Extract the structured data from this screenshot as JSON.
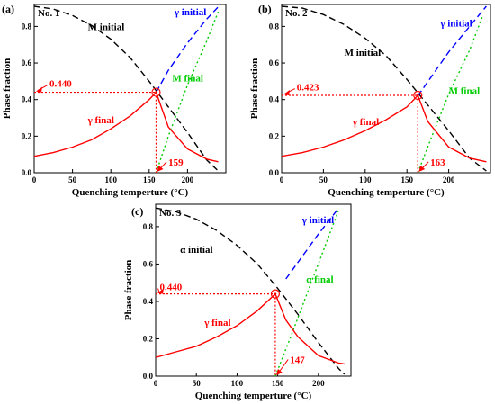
{
  "colors": {
    "gamma_final": "#ff0000",
    "gamma_initial": "#0000ff",
    "m_final": "#00cc00",
    "m_initial": "#000000",
    "annotation": "#ff0000"
  },
  "chart_data": [
    {
      "type": "line",
      "panel_letter": "(a)",
      "label": "No. 1",
      "xlabel": "Quenching temperture (°C)",
      "ylabel": "Phase fraction",
      "xlim": [
        0,
        250
      ],
      "ylim": [
        0,
        0.92
      ],
      "xticks": [
        0,
        50,
        100,
        150,
        200
      ],
      "yticks": [
        0.0,
        0.2,
        0.4,
        0.6,
        0.8
      ],
      "grid": false,
      "series": [
        {
          "name": "M initial",
          "style": "dashed",
          "color": "#000000",
          "x": [
            0,
            25,
            50,
            75,
            100,
            125,
            150,
            175,
            200,
            225,
            240
          ],
          "y": [
            0.91,
            0.895,
            0.86,
            0.805,
            0.73,
            0.63,
            0.5,
            0.36,
            0.22,
            0.07,
            0.01
          ]
        },
        {
          "name": "γ initial",
          "style": "dashed",
          "color": "#0000ff",
          "x": [
            159,
            175,
            200,
            225,
            243
          ],
          "y": [
            0.44,
            0.56,
            0.71,
            0.84,
            0.92
          ]
        },
        {
          "name": "M final",
          "style": "dotted",
          "color": "#00cc00",
          "x": [
            159,
            175,
            200,
            225,
            240
          ],
          "y": [
            0.0,
            0.2,
            0.48,
            0.72,
            0.88
          ]
        },
        {
          "name": "γ final",
          "style": "solid",
          "color": "#ff0000",
          "x": [
            0,
            25,
            50,
            75,
            100,
            125,
            150,
            159,
            175,
            200,
            225,
            240
          ],
          "y": [
            0.09,
            0.11,
            0.14,
            0.18,
            0.24,
            0.31,
            0.4,
            0.44,
            0.25,
            0.13,
            0.075,
            0.06
          ]
        }
      ],
      "annotations": {
        "value": "0.440",
        "temp": "159",
        "x": 159,
        "y": 0.44
      }
    },
    {
      "type": "line",
      "panel_letter": "(b)",
      "label": "No. 2",
      "xlabel": "Quenching temperture (°C)",
      "ylabel": "Phase fraction",
      "xlim": [
        0,
        250
      ],
      "ylim": [
        0,
        0.92
      ],
      "xticks": [
        0,
        50,
        100,
        150,
        200
      ],
      "yticks": [
        0.0,
        0.2,
        0.4,
        0.6,
        0.8
      ],
      "grid": false,
      "series": [
        {
          "name": "M initial",
          "style": "dashed",
          "color": "#000000",
          "x": [
            0,
            25,
            50,
            75,
            100,
            125,
            150,
            175,
            200,
            225,
            245
          ],
          "y": [
            0.91,
            0.9,
            0.865,
            0.81,
            0.735,
            0.64,
            0.51,
            0.37,
            0.23,
            0.08,
            0.01
          ]
        },
        {
          "name": "γ initial",
          "style": "dashed",
          "color": "#0000ff",
          "x": [
            163,
            180,
            200,
            225,
            245
          ],
          "y": [
            0.42,
            0.53,
            0.66,
            0.8,
            0.91
          ]
        },
        {
          "name": "M final",
          "style": "dotted",
          "color": "#00cc00",
          "x": [
            163,
            180,
            200,
            225,
            240
          ],
          "y": [
            0.0,
            0.2,
            0.43,
            0.67,
            0.85
          ]
        },
        {
          "name": "γ final",
          "style": "solid",
          "color": "#ff0000",
          "x": [
            0,
            25,
            50,
            75,
            100,
            125,
            150,
            163,
            175,
            200,
            225,
            245
          ],
          "y": [
            0.09,
            0.11,
            0.14,
            0.18,
            0.23,
            0.29,
            0.36,
            0.423,
            0.28,
            0.14,
            0.08,
            0.06
          ]
        }
      ],
      "annotations": {
        "value": "0.423",
        "temp": "163",
        "x": 163,
        "y": 0.423
      }
    },
    {
      "type": "line",
      "panel_letter": "(c)",
      "label": "No. 3",
      "xlabel": "Quenching temperture (°C)",
      "ylabel": "Phase fraction",
      "xlim": [
        0,
        240
      ],
      "ylim": [
        0,
        0.92
      ],
      "xticks": [
        0,
        50,
        100,
        150,
        200
      ],
      "yticks": [
        0.0,
        0.2,
        0.4,
        0.6,
        0.8
      ],
      "grid": false,
      "series": [
        {
          "name": "α initial",
          "style": "dashed",
          "color": "#000000",
          "x": [
            0,
            25,
            50,
            75,
            100,
            125,
            150,
            175,
            200,
            225,
            232
          ],
          "y": [
            0.9,
            0.88,
            0.84,
            0.78,
            0.7,
            0.6,
            0.47,
            0.33,
            0.18,
            0.04,
            0.01
          ]
        },
        {
          "name": "γ initial",
          "style": "dashed",
          "color": "#0000ff",
          "x": [
            160,
            175,
            200,
            225
          ],
          "y": [
            0.52,
            0.61,
            0.76,
            0.9
          ]
        },
        {
          "name": "α final",
          "style": "dotted",
          "color": "#00cc00",
          "x": [
            147,
            165,
            185,
            205,
            225
          ],
          "y": [
            0.0,
            0.2,
            0.43,
            0.66,
            0.89
          ]
        },
        {
          "name": "γ final",
          "style": "solid",
          "color": "#ff0000",
          "x": [
            0,
            25,
            50,
            75,
            100,
            125,
            147,
            160,
            175,
            200,
            225,
            232
          ],
          "y": [
            0.1,
            0.13,
            0.16,
            0.21,
            0.27,
            0.35,
            0.44,
            0.3,
            0.21,
            0.11,
            0.07,
            0.065
          ]
        }
      ],
      "annotations": {
        "value": "0.440",
        "temp": "147",
        "x": 147,
        "y": 0.44
      }
    }
  ]
}
